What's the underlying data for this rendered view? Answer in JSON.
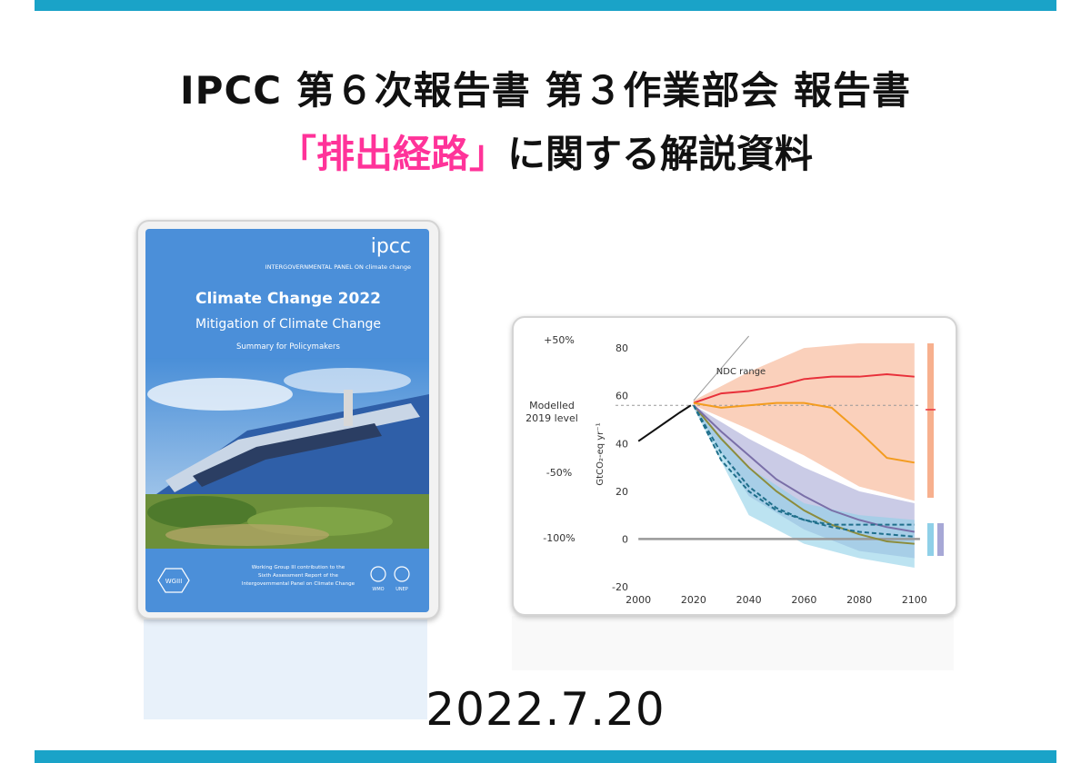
{
  "slide": {
    "title_line1": "IPCC 第６次報告書 第３作業部会 報告書",
    "title_line2_open": "「",
    "title_line2_highlight": "排出経路」",
    "title_line2_rest": "に関する解説資料",
    "date": "2022.7.20",
    "accent_color": "#1aa3c8",
    "highlight_color": "#ff3399"
  },
  "cover": {
    "logo": "ipcc",
    "org": "INTERGOVERNMENTAL PANEL ON climate change",
    "title": "Climate Change 2022",
    "subtitle": "Mitigation of Climate Change",
    "subsubtitle": "Summary for Policymakers",
    "badge": "WGIII",
    "contribution_line1": "Working Group III contribution to the",
    "contribution_line2": "Sixth Assessment Report of the",
    "contribution_line3": "Intergovernmental Panel on Climate Change",
    "partner1": "WMO",
    "partner2": "UNEP"
  },
  "chart_data": {
    "type": "line",
    "xlabel": "",
    "ylabel": "GtCO₂-eq yr⁻¹",
    "xlim": [
      1995,
      2105
    ],
    "ylim": [
      -20,
      85
    ],
    "x_ticks": [
      "2000",
      "2020",
      "2040",
      "2060",
      "2080",
      "2100"
    ],
    "y_ticks": [
      "80",
      "60",
      "40",
      "20",
      "0",
      "-20"
    ],
    "left_labels": {
      "plus50": "+50%",
      "modelled1": "Modelled",
      "modelled2": "2019 level",
      "minus50": "-50%",
      "minus100": "-100%"
    },
    "annotation": "NDC range",
    "modelled_2019_level": 56,
    "series": [
      {
        "values_x": [
          2000,
          2005,
          2010,
          2015,
          2019
        ],
        "values_y": [
          41,
          45,
          49,
          53,
          56
        ],
        "color": "#111111"
      },
      {
        "values_x": [
          2020,
          2030,
          2040,
          2050,
          2060,
          2070,
          2080,
          2090,
          2100
        ],
        "values_y": [
          57,
          61,
          62,
          64,
          67,
          68,
          68,
          69,
          68
        ],
        "color": "#e8303a"
      },
      {
        "values_x": [
          2020,
          2030,
          2040,
          2050,
          2060,
          2070,
          2080,
          2090,
          2100
        ],
        "values_y": [
          57,
          55,
          56,
          57,
          57,
          55,
          45,
          34,
          32
        ],
        "color": "#f39c1f"
      },
      {
        "values_x": [
          2020,
          2030,
          2040,
          2050,
          2060,
          2070,
          2080,
          2090,
          2100
        ],
        "values_y": [
          56,
          42,
          30,
          20,
          12,
          6,
          2,
          -1,
          -2
        ],
        "color": "#8c8c3c"
      },
      {
        "values_x": [
          2020,
          2030,
          2040,
          2050,
          2060,
          2070,
          2080,
          2090,
          2100
        ],
        "values_y": [
          56,
          45,
          35,
          25,
          18,
          12,
          8,
          5,
          3
        ],
        "color": "#7a6fa8"
      },
      {
        "values_x": [
          2020,
          2030,
          2040,
          2050,
          2060,
          2070,
          2080,
          2090,
          2100
        ],
        "values_y": [
          56,
          36,
          22,
          13,
          8,
          5,
          3,
          2,
          1
        ],
        "color": "#1f6f8b"
      },
      {
        "values_x": [
          2020,
          2030,
          2040,
          2050,
          2060,
          2070,
          2080,
          2090,
          2100
        ],
        "values_y": [
          56,
          33,
          20,
          12,
          8,
          6,
          6,
          6,
          6
        ],
        "color": "#1f6f8b"
      }
    ],
    "bands": [
      {
        "x": [
          2020,
          2040,
          2060,
          2080,
          2100
        ],
        "upper": [
          58,
          70,
          80,
          82,
          82
        ],
        "lower": [
          56,
          46,
          35,
          22,
          16
        ],
        "color": "#f7b08e"
      },
      {
        "x": [
          2020,
          2040,
          2060,
          2080,
          2100
        ],
        "upper": [
          56,
          42,
          30,
          20,
          15
        ],
        "lower": [
          55,
          18,
          4,
          -5,
          -8
        ],
        "color": "#a7a8d6"
      },
      {
        "x": [
          2020,
          2040,
          2060,
          2080,
          2100
        ],
        "upper": [
          56,
          30,
          15,
          10,
          8
        ],
        "lower": [
          55,
          10,
          -2,
          -8,
          -12
        ],
        "color": "#8fd0e8"
      }
    ]
  }
}
